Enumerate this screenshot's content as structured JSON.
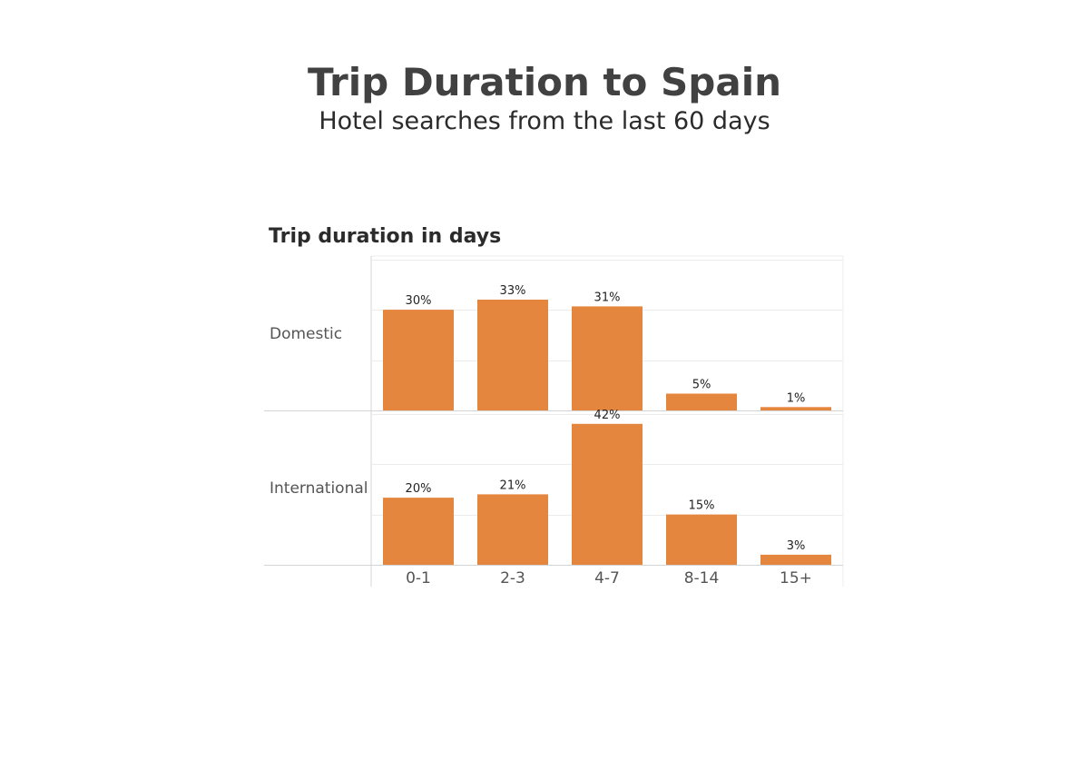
{
  "header": {
    "title": "Trip Duration to Spain",
    "subtitle": "Hotel searches from the last 60 days"
  },
  "colors": {
    "bar": "#e5863f",
    "gridline": "#ececec",
    "divider": "#d4d4d4"
  },
  "chart_data": {
    "type": "bar",
    "title": "Trip Duration to Spain",
    "subtitle": "Hotel searches from the last 60 days",
    "xlabel": "Trip duration in days",
    "ylabel": "",
    "categories": [
      "0-1",
      "2-3",
      "4-7",
      "8-14",
      "15+"
    ],
    "series": [
      {
        "name": "Domestic",
        "values": [
          30,
          33,
          31,
          5,
          1
        ],
        "labels": [
          "30%",
          "33%",
          "31%",
          "5%",
          "1%"
        ]
      },
      {
        "name": "International",
        "values": [
          20,
          21,
          42,
          15,
          3
        ],
        "labels": [
          "20%",
          "21%",
          "42%",
          "15%",
          "3%"
        ]
      }
    ],
    "unit": "%",
    "ylim": [
      0,
      46
    ],
    "grid": true,
    "legend": "none"
  }
}
